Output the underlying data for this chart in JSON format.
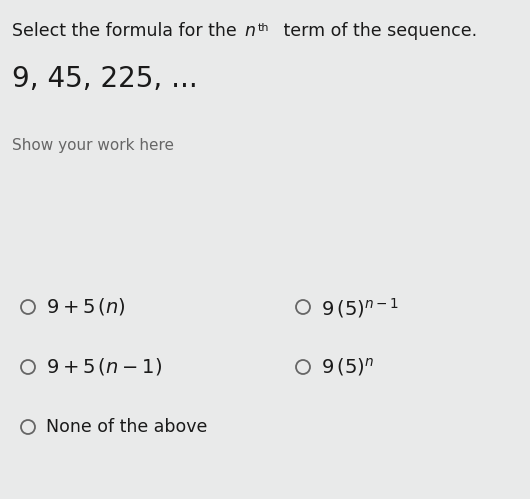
{
  "bg_color": "#e9eaea",
  "font_color": "#1a1a1a",
  "gray_color": "#666666",
  "circle_color": "#666666",
  "title_prefix": "Select the formula for the ",
  "title_suffix": " term of the sequence.",
  "sequence": "9, 45, 225, …",
  "show_work": "Show your work here",
  "opt_A": "$9 + 5\\,(n)$",
  "opt_B": "$9 + 5\\,(n - 1)$",
  "opt_C": "None of the above",
  "opt_D": "$9\\,(5)^{n-1}$",
  "opt_E": "$9\\,(5)^{n}$",
  "figw": 5.3,
  "figh": 4.99,
  "dpi": 100
}
